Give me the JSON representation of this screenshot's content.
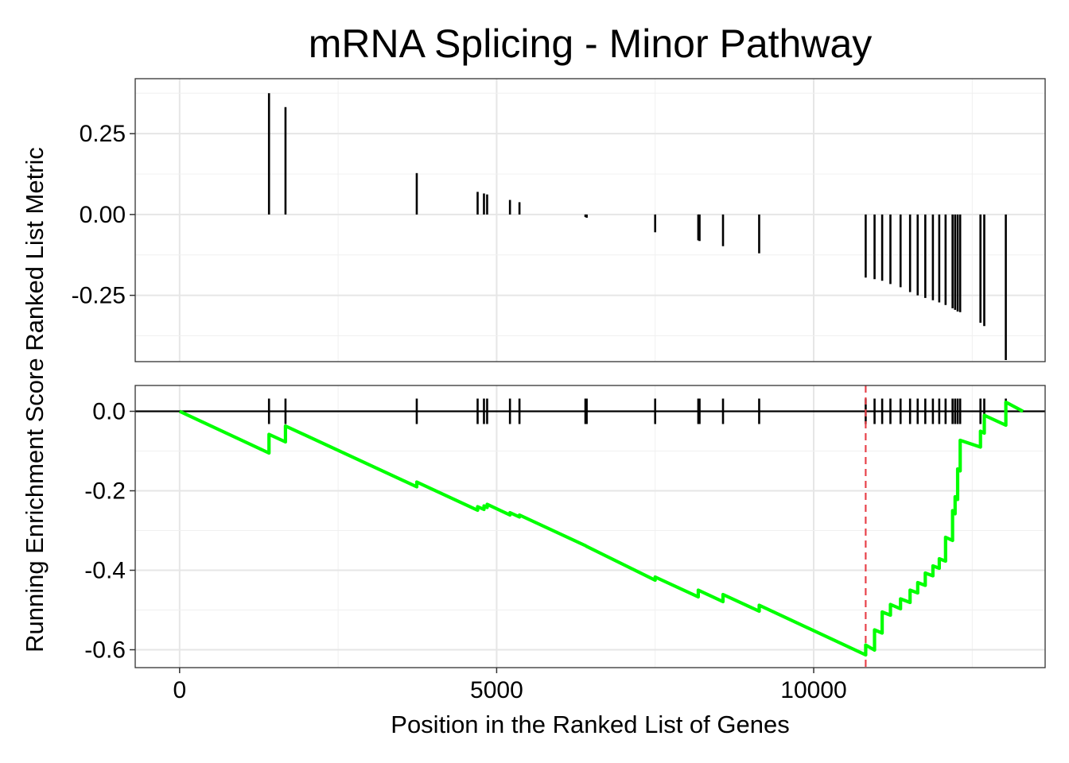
{
  "chart_data": {
    "type": "line",
    "title": "mRNA Splicing - Minor Pathway",
    "xlabel": "Position in the Ranked List of Genes",
    "ylabel": "Running Enrichment Score Ranked List Metric",
    "xlim": [
      -700,
      13650
    ],
    "x_ticks": [
      0,
      5000,
      10000
    ],
    "x_tick_labels": [
      "0",
      "5000",
      "10000"
    ],
    "grid": true,
    "colors": {
      "running_score": "#00ff00",
      "leading_edge": "#e8434b",
      "bars": "#000000"
    },
    "top_panel": {
      "ylim": [
        -0.455,
        0.42
      ],
      "y_ticks": [
        0.25,
        0.0,
        -0.25
      ],
      "y_tick_labels": [
        "0.25",
        "0.00",
        "-0.25"
      ],
      "ranked_metric": [
        {
          "x": 1410,
          "y": 0.375
        },
        {
          "x": 1670,
          "y": 0.332
        },
        {
          "x": 3740,
          "y": 0.128
        },
        {
          "x": 4700,
          "y": 0.07
        },
        {
          "x": 4800,
          "y": 0.065
        },
        {
          "x": 4850,
          "y": 0.062
        },
        {
          "x": 5210,
          "y": 0.045
        },
        {
          "x": 5360,
          "y": 0.038
        },
        {
          "x": 6400,
          "y": -0.008
        },
        {
          "x": 6420,
          "y": -0.01
        },
        {
          "x": 7500,
          "y": -0.055
        },
        {
          "x": 8180,
          "y": -0.08
        },
        {
          "x": 8200,
          "y": -0.082
        },
        {
          "x": 8570,
          "y": -0.098
        },
        {
          "x": 9140,
          "y": -0.12
        },
        {
          "x": 10820,
          "y": -0.195
        },
        {
          "x": 10960,
          "y": -0.2
        },
        {
          "x": 11080,
          "y": -0.205
        },
        {
          "x": 11210,
          "y": -0.215
        },
        {
          "x": 11370,
          "y": -0.225
        },
        {
          "x": 11520,
          "y": -0.24
        },
        {
          "x": 11640,
          "y": -0.25
        },
        {
          "x": 11760,
          "y": -0.258
        },
        {
          "x": 11880,
          "y": -0.265
        },
        {
          "x": 11980,
          "y": -0.272
        },
        {
          "x": 12080,
          "y": -0.28
        },
        {
          "x": 12190,
          "y": -0.29
        },
        {
          "x": 12230,
          "y": -0.295
        },
        {
          "x": 12270,
          "y": -0.3
        },
        {
          "x": 12310,
          "y": -0.302
        },
        {
          "x": 12630,
          "y": -0.335
        },
        {
          "x": 12690,
          "y": -0.345
        },
        {
          "x": 13030,
          "y": -0.45
        }
      ]
    },
    "bottom_panel": {
      "ylim": [
        -0.645,
        0.065
      ],
      "y_ticks": [
        0.0,
        -0.2,
        -0.4,
        -0.6
      ],
      "y_tick_labels": [
        "0.0",
        "-0.2",
        "-0.4",
        "-0.6"
      ],
      "leading_edge_x": 10820,
      "running_score": [
        {
          "x": 0,
          "y": 0.0
        },
        {
          "x": 1410,
          "y": -0.105
        },
        {
          "x": 1410,
          "y": -0.058
        },
        {
          "x": 1670,
          "y": -0.077
        },
        {
          "x": 1670,
          "y": -0.037
        },
        {
          "x": 3740,
          "y": -0.19
        },
        {
          "x": 3740,
          "y": -0.178
        },
        {
          "x": 4700,
          "y": -0.249
        },
        {
          "x": 4700,
          "y": -0.24
        },
        {
          "x": 4800,
          "y": -0.247
        },
        {
          "x": 4800,
          "y": -0.238
        },
        {
          "x": 4850,
          "y": -0.242
        },
        {
          "x": 4850,
          "y": -0.234
        },
        {
          "x": 5210,
          "y": -0.261
        },
        {
          "x": 5210,
          "y": -0.255
        },
        {
          "x": 5360,
          "y": -0.266
        },
        {
          "x": 5360,
          "y": -0.261
        },
        {
          "x": 6400,
          "y": -0.338
        },
        {
          "x": 6420,
          "y": -0.34
        },
        {
          "x": 7500,
          "y": -0.425
        },
        {
          "x": 7500,
          "y": -0.417
        },
        {
          "x": 8180,
          "y": -0.467
        },
        {
          "x": 8180,
          "y": -0.45
        },
        {
          "x": 8570,
          "y": -0.479
        },
        {
          "x": 8570,
          "y": -0.461
        },
        {
          "x": 9140,
          "y": -0.503
        },
        {
          "x": 9140,
          "y": -0.488
        },
        {
          "x": 10820,
          "y": -0.613
        },
        {
          "x": 10820,
          "y": -0.588
        },
        {
          "x": 10960,
          "y": -0.601
        },
        {
          "x": 10960,
          "y": -0.55
        },
        {
          "x": 11080,
          "y": -0.558
        },
        {
          "x": 11080,
          "y": -0.505
        },
        {
          "x": 11210,
          "y": -0.513
        },
        {
          "x": 11210,
          "y": -0.486
        },
        {
          "x": 11370,
          "y": -0.497
        },
        {
          "x": 11370,
          "y": -0.472
        },
        {
          "x": 11520,
          "y": -0.481
        },
        {
          "x": 11520,
          "y": -0.45
        },
        {
          "x": 11640,
          "y": -0.457
        },
        {
          "x": 11640,
          "y": -0.431
        },
        {
          "x": 11760,
          "y": -0.438
        },
        {
          "x": 11760,
          "y": -0.407
        },
        {
          "x": 11880,
          "y": -0.414
        },
        {
          "x": 11880,
          "y": -0.389
        },
        {
          "x": 11980,
          "y": -0.395
        },
        {
          "x": 11980,
          "y": -0.371
        },
        {
          "x": 12080,
          "y": -0.377
        },
        {
          "x": 12080,
          "y": -0.317
        },
        {
          "x": 12190,
          "y": -0.325
        },
        {
          "x": 12190,
          "y": -0.25
        },
        {
          "x": 12230,
          "y": -0.258
        },
        {
          "x": 12230,
          "y": -0.215
        },
        {
          "x": 12270,
          "y": -0.222
        },
        {
          "x": 12270,
          "y": -0.145
        },
        {
          "x": 12310,
          "y": -0.15
        },
        {
          "x": 12310,
          "y": -0.073
        },
        {
          "x": 12630,
          "y": -0.09
        },
        {
          "x": 12630,
          "y": -0.05
        },
        {
          "x": 12690,
          "y": -0.055
        },
        {
          "x": 12690,
          "y": -0.01
        },
        {
          "x": 13030,
          "y": -0.035
        },
        {
          "x": 13030,
          "y": 0.023
        },
        {
          "x": 13300,
          "y": 0.0
        }
      ]
    }
  }
}
